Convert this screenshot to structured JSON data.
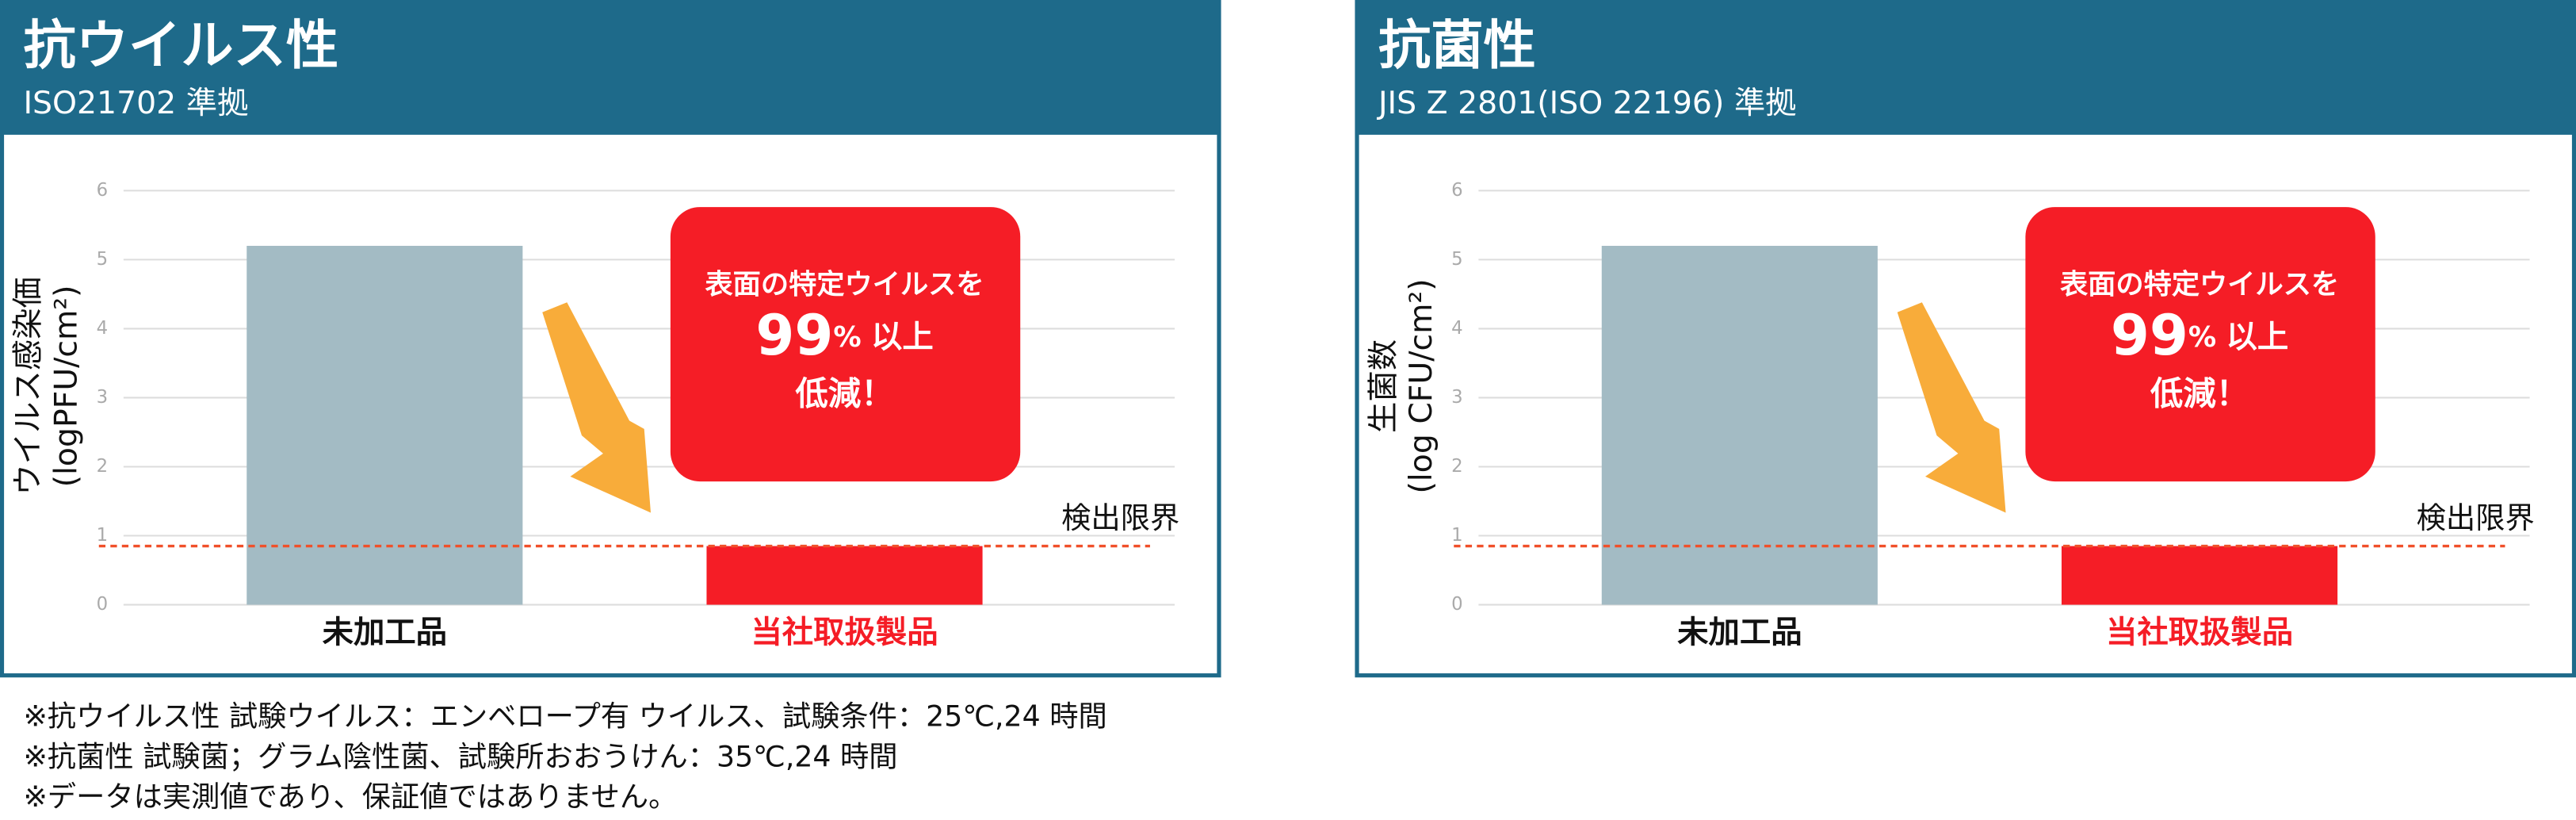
{
  "chart_data": [
    {
      "type": "bar",
      "title": "抗ウイルス性",
      "subtitle": "ISO21702 準拠",
      "ylabel": [
        "ウイルス感染価",
        "(logPFU/cm²)"
      ],
      "categories": [
        "未加工品",
        "当社取扱製品"
      ],
      "values": [
        5.2,
        0.85
      ],
      "colors": [
        "#a3bbc4",
        "#f51d26"
      ],
      "label_colors": [
        "#111111",
        "#f51d26"
      ],
      "ylim": [
        0,
        6
      ],
      "yticks": [
        0,
        1,
        2,
        3,
        4,
        5,
        6
      ],
      "grid": true,
      "detection_limit": {
        "label": "検出限界",
        "value": 0.85
      },
      "callout": {
        "top": "表面の特定ウイルスを",
        "percent": 99,
        "unit": "%",
        "suffix": "以上",
        "bottom": "低減！"
      }
    },
    {
      "type": "bar",
      "title": "抗菌性",
      "subtitle": "JIS Z 2801(ISO 22196) 準拠",
      "ylabel": [
        "生菌数",
        "(log CFU/cm²)"
      ],
      "categories": [
        "未加工品",
        "当社取扱製品"
      ],
      "values": [
        5.2,
        0.85
      ],
      "colors": [
        "#a3bbc4",
        "#f51d26"
      ],
      "label_colors": [
        "#111111",
        "#f51d26"
      ],
      "ylim": [
        0,
        6
      ],
      "yticks": [
        0,
        1,
        2,
        3,
        4,
        5,
        6
      ],
      "grid": true,
      "detection_limit": {
        "label": "検出限界",
        "value": 0.85
      },
      "callout": {
        "top": "表面の特定ウイルスを",
        "percent": 99,
        "unit": "%",
        "suffix": "以上",
        "bottom": "低減！"
      }
    }
  ],
  "notes": [
    "※抗ウイルス性 試験ウイルス：エンベロープ有 ウイルス、試験条件：25℃,24 時間",
    "※抗菌性 試験菌；グラム陰性菌、試験所おおうけん：35℃,24 時間",
    "※データは実測値であり、保証値ではありません。"
  ]
}
